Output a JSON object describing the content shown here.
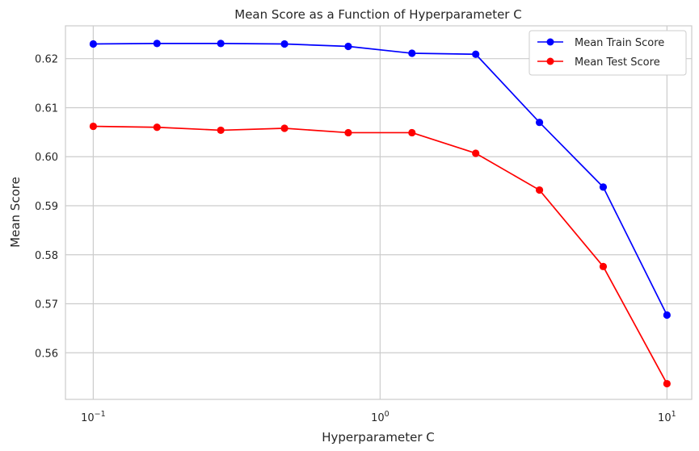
{
  "chart_data": {
    "type": "line",
    "title": "Mean Score as a Function of Hyperparameter C",
    "xlabel": "Hyperparameter C",
    "ylabel": "Mean Score",
    "x_scale": "log",
    "x": [
      0.1,
      0.1668,
      0.2783,
      0.4642,
      0.7743,
      1.2915,
      2.1544,
      3.5938,
      5.9948,
      10.0
    ],
    "xlim": [
      0.08,
      12.2
    ],
    "ylim": [
      0.5505,
      0.6267
    ],
    "x_ticks": [
      {
        "value": 0.1,
        "base": "10",
        "exp": "−1"
      },
      {
        "value": 1,
        "base": "10",
        "exp": "0"
      },
      {
        "value": 10,
        "base": "10",
        "exp": "1"
      }
    ],
    "y_ticks": [
      0.56,
      0.57,
      0.58,
      0.59,
      0.6,
      0.61,
      0.62
    ],
    "y_tick_labels": [
      "0.56",
      "0.57",
      "0.58",
      "0.59",
      "0.60",
      "0.61",
      "0.62"
    ],
    "grid": true,
    "legend_position": "top-right",
    "series": [
      {
        "name": "Mean Train Score",
        "color": "#0000ff",
        "marker": "circle",
        "values": [
          0.623,
          0.6231,
          0.6231,
          0.623,
          0.6225,
          0.6211,
          0.6209,
          0.607,
          0.5938,
          0.5677
        ]
      },
      {
        "name": "Mean Test Score",
        "color": "#ff0000",
        "marker": "circle",
        "values": [
          0.6062,
          0.606,
          0.6054,
          0.6058,
          0.6049,
          0.6049,
          0.6007,
          0.5932,
          0.5776,
          0.5537
        ]
      }
    ]
  }
}
